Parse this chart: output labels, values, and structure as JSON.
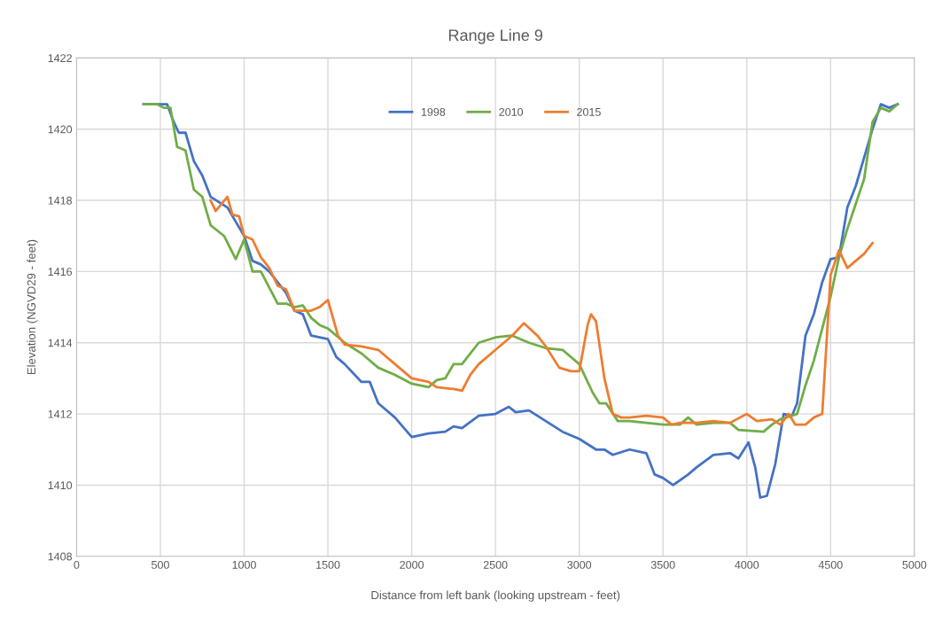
{
  "chart_data": {
    "type": "line",
    "title": "Range Line 9",
    "xlabel": "Distance from left bank (looking upstream - feet)",
    "ylabel": "Elevation (NGVD29 - feet)",
    "xlim": [
      0,
      5000
    ],
    "xticks": [
      0,
      500,
      1000,
      1500,
      2000,
      2500,
      3000,
      3500,
      4000,
      4500,
      5000
    ],
    "ylim": [
      1408,
      1422
    ],
    "yticks": [
      1408,
      1410,
      1412,
      1414,
      1416,
      1418,
      1420,
      1422
    ],
    "grid": true,
    "legend": "top",
    "marker": "none",
    "line_style": "solid",
    "series": [
      {
        "name": "1998",
        "color": "#4472c4",
        "x": [
          400,
          500,
          540,
          580,
          610,
          650,
          700,
          750,
          800,
          900,
          1000,
          1050,
          1100,
          1150,
          1250,
          1300,
          1350,
          1400,
          1500,
          1550,
          1600,
          1700,
          1750,
          1800,
          1900,
          2000,
          2100,
          2200,
          2250,
          2300,
          2400,
          2500,
          2580,
          2620,
          2700,
          2800,
          2900,
          3000,
          3100,
          3150,
          3200,
          3300,
          3400,
          3450,
          3500,
          3560,
          3650,
          3700,
          3800,
          3900,
          3950,
          4010,
          4050,
          4080,
          4120,
          4170,
          4220,
          4270,
          4300,
          4350,
          4400,
          4450,
          4500,
          4550,
          4600,
          4650,
          4700,
          4750,
          4800,
          4850,
          4900
        ],
        "values": [
          1420.7,
          1420.7,
          1420.7,
          1420.2,
          1419.9,
          1419.9,
          1419.1,
          1418.7,
          1418.1,
          1417.8,
          1417.0,
          1416.3,
          1416.2,
          1416.0,
          1415.4,
          1414.9,
          1414.8,
          1414.2,
          1414.1,
          1413.6,
          1413.4,
          1412.9,
          1412.9,
          1412.3,
          1411.9,
          1411.35,
          1411.45,
          1411.5,
          1411.65,
          1411.6,
          1411.95,
          1412.0,
          1412.2,
          1412.05,
          1412.1,
          1411.8,
          1411.5,
          1411.3,
          1411.0,
          1411.0,
          1410.85,
          1411.0,
          1410.9,
          1410.3,
          1410.2,
          1410.0,
          1410.3,
          1410.5,
          1410.85,
          1410.9,
          1410.75,
          1411.2,
          1410.5,
          1409.65,
          1409.7,
          1410.6,
          1412.0,
          1411.95,
          1412.3,
          1414.2,
          1414.8,
          1415.7,
          1416.35,
          1416.4,
          1417.8,
          1418.4,
          1419.2,
          1420.0,
          1420.7,
          1420.6,
          1420.7
        ]
      },
      {
        "name": "2010",
        "color": "#70ad47",
        "x": [
          400,
          480,
          520,
          560,
          600,
          650,
          700,
          750,
          800,
          880,
          950,
          1000,
          1050,
          1100,
          1200,
          1250,
          1300,
          1350,
          1400,
          1450,
          1500,
          1600,
          1700,
          1800,
          1900,
          2000,
          2100,
          2150,
          2200,
          2250,
          2300,
          2400,
          2500,
          2600,
          2700,
          2800,
          2900,
          3000,
          3080,
          3120,
          3160,
          3230,
          3300,
          3400,
          3500,
          3600,
          3650,
          3700,
          3800,
          3900,
          3950,
          4100,
          4150,
          4200,
          4300,
          4350,
          4400,
          4500,
          4550,
          4600,
          4700,
          4750,
          4800,
          4850,
          4900
        ],
        "values": [
          1420.7,
          1420.7,
          1420.6,
          1420.6,
          1419.5,
          1419.4,
          1418.3,
          1418.1,
          1417.3,
          1417.0,
          1416.35,
          1416.9,
          1416.0,
          1416.0,
          1415.1,
          1415.1,
          1415.0,
          1415.05,
          1414.7,
          1414.5,
          1414.4,
          1414.0,
          1413.7,
          1413.3,
          1413.1,
          1412.85,
          1412.75,
          1412.95,
          1413.0,
          1413.4,
          1413.4,
          1414.0,
          1414.15,
          1414.2,
          1414.0,
          1413.85,
          1413.8,
          1413.4,
          1412.6,
          1412.3,
          1412.3,
          1411.8,
          1411.8,
          1411.75,
          1411.7,
          1411.7,
          1411.9,
          1411.7,
          1411.75,
          1411.75,
          1411.55,
          1411.5,
          1411.7,
          1411.85,
          1412.0,
          1412.8,
          1413.5,
          1415.3,
          1416.4,
          1417.2,
          1418.6,
          1420.2,
          1420.6,
          1420.5,
          1420.7
        ]
      },
      {
        "name": "2015",
        "color": "#ed7d31",
        "x": [
          800,
          830,
          900,
          930,
          970,
          1000,
          1050,
          1100,
          1150,
          1200,
          1250,
          1300,
          1350,
          1400,
          1450,
          1500,
          1560,
          1600,
          1700,
          1800,
          1900,
          2000,
          2050,
          2100,
          2150,
          2250,
          2300,
          2350,
          2400,
          2500,
          2600,
          2670,
          2750,
          2800,
          2880,
          2950,
          3000,
          3050,
          3070,
          3100,
          3150,
          3200,
          3250,
          3300,
          3400,
          3500,
          3550,
          3600,
          3700,
          3800,
          3900,
          4000,
          4060,
          4150,
          4200,
          4250,
          4290,
          4350,
          4400,
          4450,
          4500,
          4550,
          4600,
          4700,
          4750
        ],
        "values": [
          1418.0,
          1417.7,
          1418.1,
          1417.6,
          1417.55,
          1417.0,
          1416.9,
          1416.4,
          1416.1,
          1415.6,
          1415.5,
          1414.9,
          1414.9,
          1414.9,
          1415.0,
          1415.2,
          1414.2,
          1413.95,
          1413.9,
          1413.8,
          1413.4,
          1413.0,
          1412.95,
          1412.9,
          1412.75,
          1412.7,
          1412.65,
          1413.1,
          1413.4,
          1413.8,
          1414.2,
          1414.55,
          1414.2,
          1413.9,
          1413.3,
          1413.2,
          1413.2,
          1414.5,
          1414.8,
          1414.6,
          1413.0,
          1412.0,
          1411.9,
          1411.9,
          1411.95,
          1411.9,
          1411.7,
          1411.75,
          1411.75,
          1411.8,
          1411.75,
          1412.0,
          1411.8,
          1411.85,
          1411.7,
          1412.0,
          1411.7,
          1411.7,
          1411.9,
          1412.0,
          1415.9,
          1416.6,
          1416.1,
          1416.5,
          1416.8
        ]
      }
    ]
  }
}
